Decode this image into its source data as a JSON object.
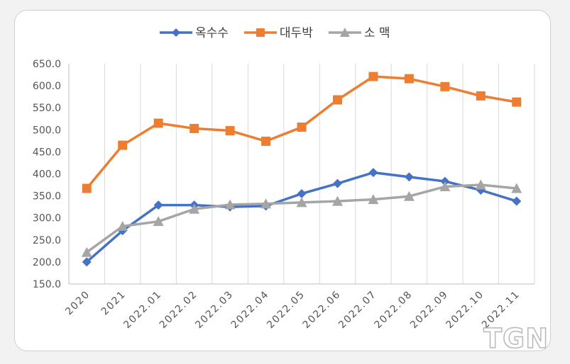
{
  "chart_data": {
    "type": "line",
    "title": "",
    "xlabel": "",
    "ylabel": "",
    "ylim": [
      150,
      650
    ],
    "yticks": [
      "150.0",
      "200.0",
      "250.0",
      "300.0",
      "350.0",
      "400.0",
      "450.0",
      "500.0",
      "550.0",
      "600.0",
      "650.0"
    ],
    "categories": [
      "2020",
      "2021",
      "2022.01",
      "2022.02",
      "2022.03",
      "2022.04",
      "2022.05",
      "2022.06",
      "2022.07",
      "2022.08",
      "2022.09",
      "2022.10",
      "2022.11"
    ],
    "grid": "vertical",
    "legend": "top-center",
    "series": [
      {
        "name": "옥수수",
        "color": "#4472c4",
        "marker": "diamond",
        "values": [
          200,
          271,
          329,
          329,
          325,
          327,
          355,
          378,
          403,
          393,
          383,
          363,
          338
        ]
      },
      {
        "name": "대두박",
        "color": "#ed7d31",
        "marker": "square",
        "values": [
          367,
          465,
          515,
          503,
          498,
          474,
          506,
          568,
          621,
          616,
          598,
          577,
          563
        ]
      },
      {
        "name": "소 맥",
        "color": "#a5a5a5",
        "marker": "triangle",
        "values": [
          222,
          281,
          292,
          320,
          330,
          332,
          335,
          338,
          342,
          349,
          371,
          375,
          367
        ]
      }
    ]
  },
  "watermark": "TGN"
}
